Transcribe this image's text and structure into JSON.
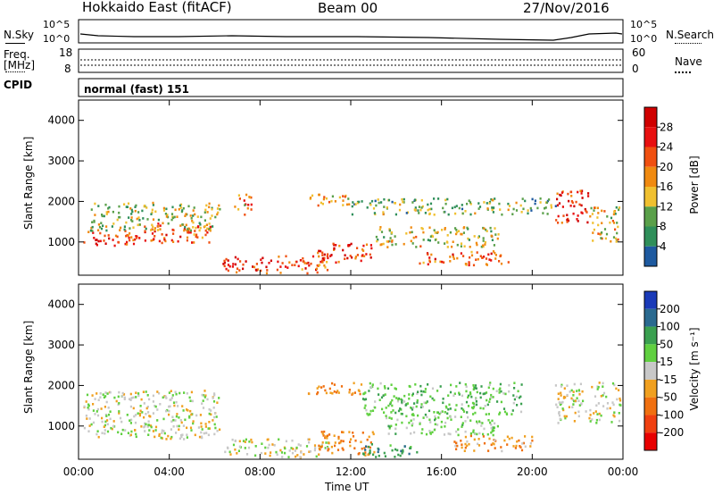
{
  "header": {
    "title": "Hokkaido East (fitACF)",
    "beam": "Beam 00",
    "date": "27/Nov/2016"
  },
  "top_panel": {
    "left_label_1": "N.Sky",
    "left_label_2": "Freq.",
    "left_label_3": "[MHz]",
    "left_label_4": "CPID",
    "right_label_1": "N.Search",
    "right_label_2": "Nave",
    "nsky_ticks": [
      "10^5",
      "10^0"
    ],
    "freq_ticks": [
      "18",
      "8"
    ],
    "nave_ticks": [
      "60",
      "0"
    ],
    "cpid_text": "normal (fast) 151"
  },
  "colors": {
    "power_scale": [
      "#0000ff",
      "#1e5aa0",
      "#2f8f5a",
      "#5aa04a",
      "#f0c030",
      "#f08a10",
      "#f05010",
      "#e81010",
      "#d00000"
    ],
    "velocity_scale": [
      "#1a3ab8",
      "#2a6a90",
      "#3aa050",
      "#60d040",
      "#c8c8c8",
      "#f0a020",
      "#f07010",
      "#f04010",
      "#e80000"
    ]
  },
  "chart_data": [
    {
      "type": "heatmap",
      "panel": "power",
      "ylabel": "Slant Range [km]",
      "y_ticks": [
        "1000",
        "2000",
        "3000",
        "4000"
      ],
      "ylim": [
        180,
        4500
      ],
      "x_ticks": [
        "00:00",
        "04:00",
        "08:00",
        "12:00",
        "16:00",
        "20:00",
        "00:00"
      ],
      "xlim_hours": [
        0,
        24
      ],
      "colorbar_label": "Power [dB]",
      "colorbar_ticks": [
        "4",
        "8",
        "12",
        "16",
        "20",
        "24",
        "28"
      ],
      "regions": [
        {
          "t0": 0.2,
          "t1": 2.5,
          "r0": 900,
          "r1": 1300,
          "v": 26
        },
        {
          "t0": 2.5,
          "t1": 5.8,
          "r0": 1000,
          "r1": 1500,
          "v": 24
        },
        {
          "t0": 0.5,
          "t1": 6.2,
          "r0": 1300,
          "r1": 2000,
          "v": 14
        },
        {
          "t0": 6.3,
          "t1": 8.6,
          "r0": 250,
          "r1": 650,
          "v": 28
        },
        {
          "t0": 8.6,
          "t1": 11.0,
          "r0": 250,
          "r1": 700,
          "v": 24
        },
        {
          "t0": 10.5,
          "t1": 13.0,
          "r0": 500,
          "r1": 1000,
          "v": 27
        },
        {
          "t0": 12.0,
          "t1": 19.5,
          "r0": 1700,
          "r1": 2100,
          "v": 12
        },
        {
          "t0": 13.0,
          "t1": 18.5,
          "r0": 900,
          "r1": 1400,
          "v": 16
        },
        {
          "t0": 15.0,
          "t1": 19.0,
          "r0": 450,
          "r1": 800,
          "v": 24
        },
        {
          "t0": 19.5,
          "t1": 21.0,
          "r0": 1700,
          "r1": 2100,
          "v": 10
        },
        {
          "t0": 21.0,
          "t1": 22.5,
          "r0": 1500,
          "r1": 2300,
          "v": 27
        },
        {
          "t0": 22.5,
          "t1": 24.0,
          "r0": 1000,
          "r1": 1900,
          "v": 16
        },
        {
          "t0": 6.8,
          "t1": 7.6,
          "r0": 1700,
          "r1": 2200,
          "v": 20
        },
        {
          "t0": 10.0,
          "t1": 12.0,
          "r0": 1900,
          "r1": 2200,
          "v": 20
        }
      ]
    },
    {
      "type": "heatmap",
      "panel": "velocity",
      "ylabel": "Slant Range [km]",
      "y_ticks": [
        "1000",
        "2000",
        "3000",
        "4000"
      ],
      "ylim": [
        180,
        4500
      ],
      "x_ticks": [
        "00:00",
        "04:00",
        "08:00",
        "12:00",
        "16:00",
        "20:00",
        "00:00"
      ],
      "xlim_hours": [
        0,
        24
      ],
      "xlabel": "Time UT",
      "colorbar_label": "Velocity [m s⁻¹]",
      "colorbar_ticks": [
        "-200",
        "-100",
        "-50",
        "-15",
        "15",
        "50",
        "100",
        "200"
      ],
      "regions": [
        {
          "t0": 0.2,
          "t1": 6.2,
          "r0": 700,
          "r1": 1900,
          "v": 0
        },
        {
          "t0": 6.3,
          "t1": 11.0,
          "r0": 250,
          "r1": 700,
          "v": 0
        },
        {
          "t0": 10.0,
          "t1": 12.5,
          "r0": 1800,
          "r1": 2100,
          "v": -60
        },
        {
          "t0": 12.5,
          "t1": 19.5,
          "r0": 1300,
          "r1": 2100,
          "v": 40
        },
        {
          "t0": 13.5,
          "t1": 18.5,
          "r0": 800,
          "r1": 1300,
          "v": 20
        },
        {
          "t0": 10.5,
          "t1": 13.0,
          "r0": 300,
          "r1": 900,
          "v": -60
        },
        {
          "t0": 12.5,
          "t1": 15.0,
          "r0": 250,
          "r1": 600,
          "v": 80
        },
        {
          "t0": 16.5,
          "t1": 20.0,
          "r0": 400,
          "r1": 800,
          "v": -40
        },
        {
          "t0": 21.0,
          "t1": 24.0,
          "r0": 1100,
          "r1": 2100,
          "v": 0
        }
      ]
    }
  ]
}
